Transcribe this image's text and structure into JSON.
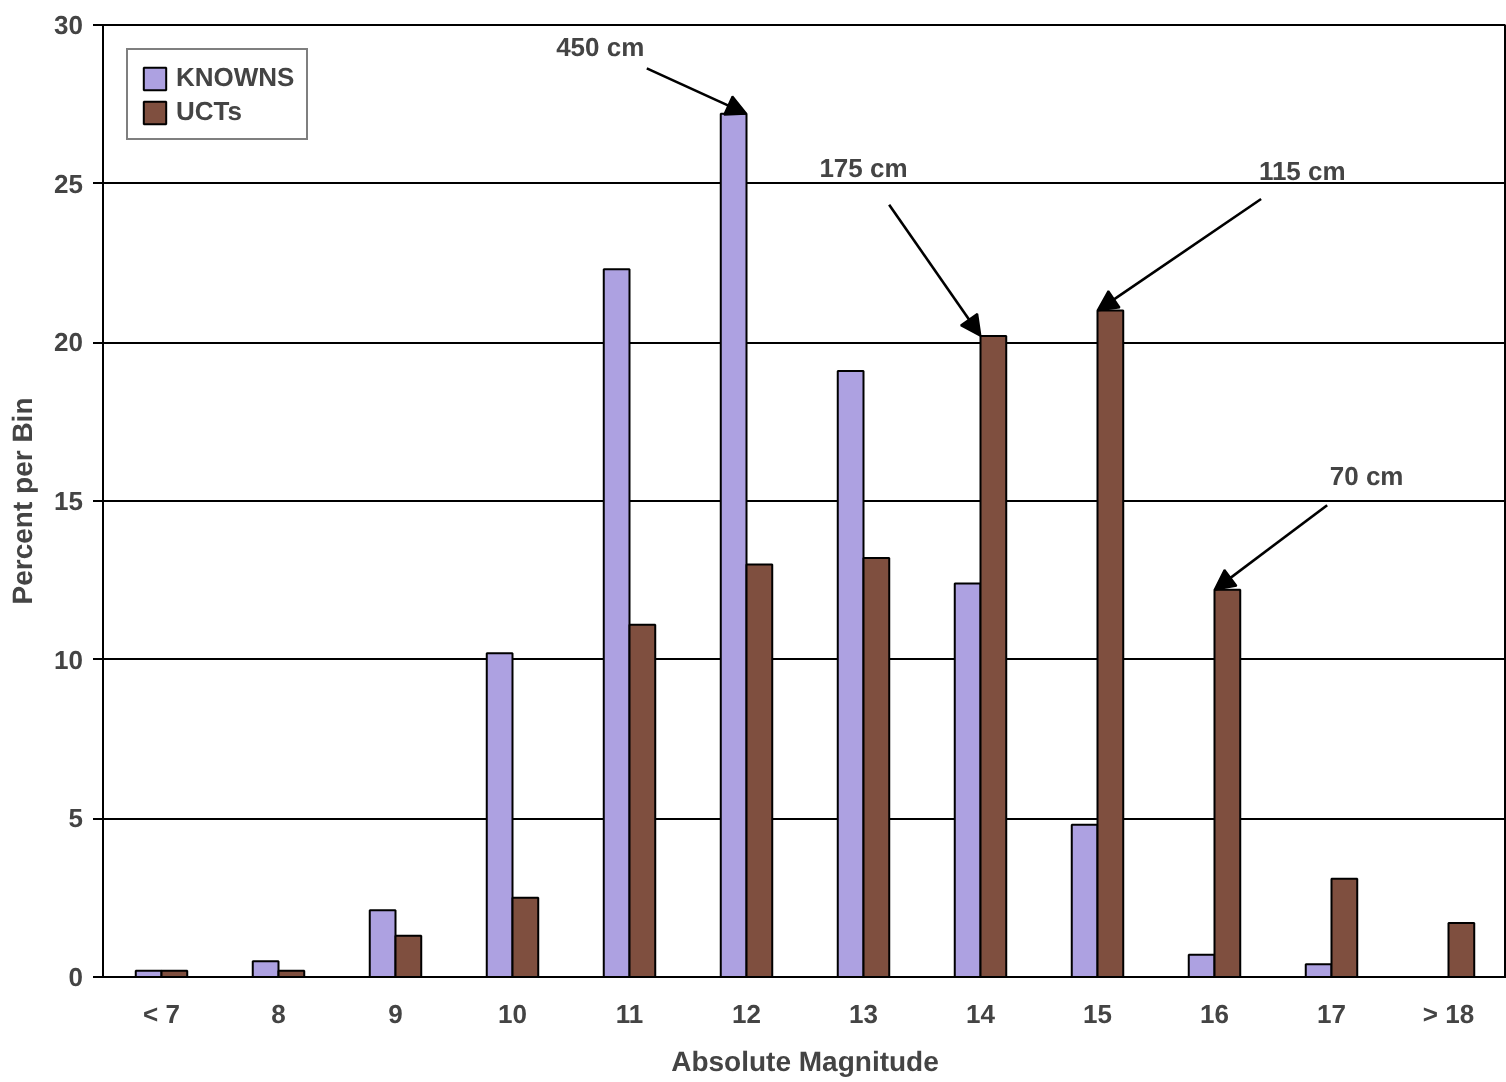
{
  "chart_data": {
    "type": "bar",
    "xlabel": "Absolute Magnitude",
    "ylabel": "Percent per Bin",
    "categories": [
      "< 7",
      "8",
      "9",
      "10",
      "11",
      "12",
      "13",
      "14",
      "15",
      "16",
      "17",
      "> 18"
    ],
    "series": [
      {
        "name": "KNOWNS",
        "color": "#ada1e1",
        "values": [
          0.2,
          0.5,
          2.1,
          10.2,
          22.3,
          27.2,
          19.1,
          12.4,
          4.8,
          0.7,
          0.4,
          null
        ]
      },
      {
        "name": "UCTs",
        "color": "#7f4f3f",
        "values": [
          0.2,
          0.2,
          1.3,
          2.5,
          11.1,
          13.0,
          13.2,
          20.2,
          21.0,
          12.2,
          3.1,
          1.7
        ]
      }
    ],
    "ylim": [
      0,
      30
    ],
    "yticks": [
      0,
      5,
      10,
      15,
      20,
      25,
      30
    ],
    "grid": "y",
    "legend": "top left",
    "annotations": [
      {
        "text": "450 cm",
        "x": "12",
        "y": 27.2
      },
      {
        "text": "175 cm",
        "x": "14",
        "y": 20.2
      },
      {
        "text": "115 cm",
        "x": "15",
        "y": 21.0
      },
      {
        "text": "70 cm",
        "x": "16",
        "y": 12.2
      }
    ]
  }
}
